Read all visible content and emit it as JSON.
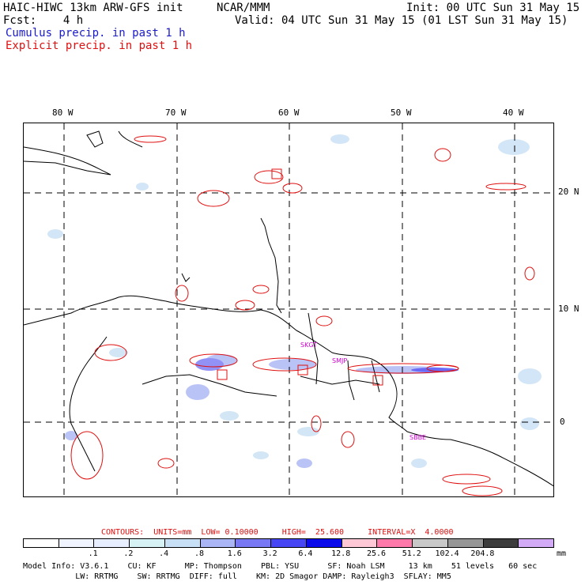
{
  "header": {
    "model_title": "HAIC-HIWC 13km ARW-GFS init",
    "org": "NCAR/MMM",
    "init": "Init: 00 UTC Sun 31 May 15",
    "fcst": "Fcst:    4 h",
    "valid": "Valid: 04 UTC Sun 31 May 15 (01 LST Sun 31 May 15)",
    "cumulus": "Cumulus precip. in past 1 h",
    "explicit": "Explicit precip. in past 1 h"
  },
  "axes": {
    "lon_labels": [
      "80 W",
      "70 W",
      "60 W",
      "50 W",
      "40 W"
    ],
    "lat_labels": [
      "20 N",
      "10 N",
      "0"
    ]
  },
  "station_labels": [
    "SMJP",
    "SBBE",
    "SKGT"
  ],
  "contours": {
    "text": "CONTOURS:  UNITS=mm  LOW= 0.10000     HIGH=  25.600     INTERVAL=X  4.0000"
  },
  "scale": {
    "ticks": [
      ".1",
      ".2",
      ".4",
      ".8",
      "1.6",
      "3.2",
      "6.4",
      "12.8",
      "25.6",
      "51.2",
      "102.4",
      "204.8"
    ],
    "unit": "mm",
    "colors": [
      "#ffffff",
      "#f0f4ff",
      "#e6eeff",
      "#d7f2f5",
      "#c8e0f5",
      "#aab5f5",
      "#7878f5",
      "#4646f5",
      "#0a0aeb",
      "#ffc8d7",
      "#ff78aa",
      "#c8c8c8",
      "#969696",
      "#3c3c3c",
      "#d2aaf5"
    ]
  },
  "footer": {
    "line1": "Model Info: V3.6.1    CU: KF      MP: Thompson    PBL: YSU      SF: Noah LSM     13 km    51 levels   60 sec",
    "line2": "           LW: RRTMG    SW: RRTMG  DIFF: full    KM: 2D Smagor DAMP: Rayleigh3  SFLAY: MM5"
  }
}
